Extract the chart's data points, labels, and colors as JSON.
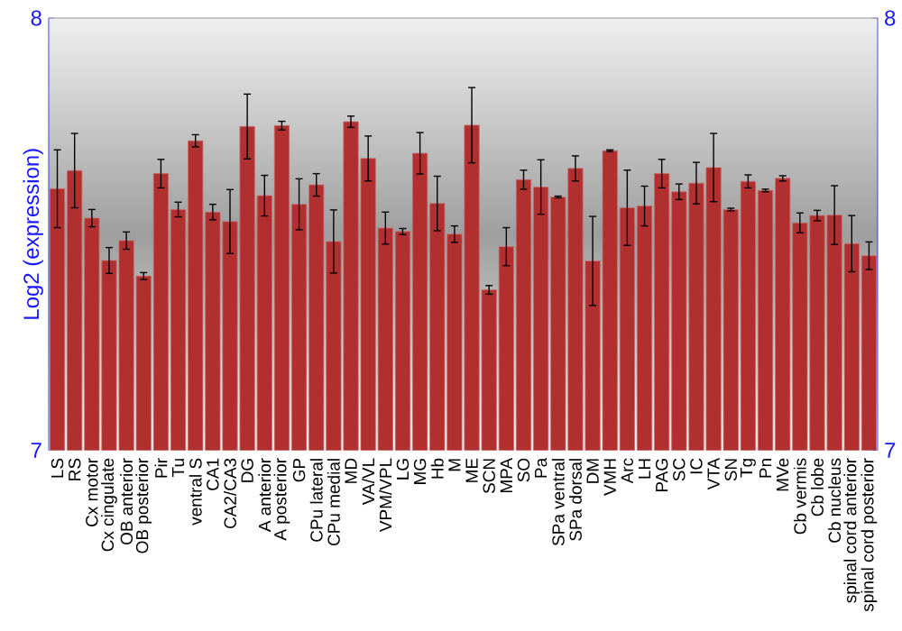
{
  "chart_data": {
    "type": "bar",
    "ylabel": "Log2 (expression)",
    "categories": [
      "LS",
      "RS",
      "Cx motor",
      "Cx cingulate",
      "OB anterior",
      "OB posterior",
      "Pir",
      "Tu",
      "ventral S",
      "CA1",
      "CA2/CA3",
      "DG",
      "A anterior",
      "A posterior",
      "GP",
      "CPu lateral",
      "CPu medial",
      "MD",
      "VA/VL",
      "VPM/VPL",
      "LG",
      "MG",
      "Hb",
      "M",
      "ME",
      "SCN",
      "MPA",
      "SO",
      "Pa",
      "SPa ventral",
      "SPa dorsal",
      "DM",
      "VMH",
      "Arc",
      "LH",
      "PAG",
      "SC",
      "IC",
      "VTA",
      "SN",
      "Tg",
      "Pn",
      "MVe",
      "Cb vermis",
      "Cb lobe",
      "Cb nucleus",
      "spinal cord anterior",
      "spinal cord posterior"
    ],
    "values": [
      7.605,
      7.647,
      7.537,
      7.439,
      7.485,
      7.403,
      7.64,
      7.557,
      7.716,
      7.551,
      7.529,
      7.749,
      7.589,
      7.751,
      7.569,
      7.614,
      7.483,
      7.76,
      7.675,
      7.514,
      7.506,
      7.687,
      7.571,
      7.5,
      7.752,
      7.371,
      7.471,
      7.626,
      7.609,
      7.586,
      7.652,
      7.438,
      7.693,
      7.561,
      7.565,
      7.64,
      7.598,
      7.618,
      7.654,
      7.557,
      7.622,
      7.601,
      7.629,
      7.526,
      7.543,
      7.544,
      7.478,
      7.45
    ],
    "errors": [
      0.09,
      0.086,
      0.02,
      0.03,
      0.02,
      0.008,
      0.033,
      0.017,
      0.014,
      0.018,
      0.074,
      0.075,
      0.047,
      0.01,
      0.059,
      0.026,
      0.073,
      0.013,
      0.052,
      0.037,
      0.007,
      0.048,
      0.063,
      0.019,
      0.087,
      0.01,
      0.044,
      0.022,
      0.063,
      0.002,
      0.029,
      0.103,
      0.002,
      0.087,
      0.046,
      0.033,
      0.018,
      0.048,
      0.079,
      0.003,
      0.015,
      0.003,
      0.006,
      0.023,
      0.012,
      0.068,
      0.065,
      0.032
    ],
    "color": "#b22f2f",
    "ylim": [
      7,
      8
    ],
    "yticks": [
      7,
      8
    ],
    "y2lim": [
      7,
      8
    ],
    "y2ticks": [
      7,
      8
    ]
  }
}
